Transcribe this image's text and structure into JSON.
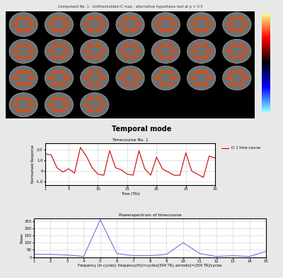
{
  "header": {
    "title": "Component No. 1 - Unthresholded IC map - alternative hypothesis test at p > 0.5",
    "section": "Temporal mode"
  },
  "chart_data": [
    {
      "type": "line",
      "title": "Timecourse No. 1",
      "x_label": "Time (TRs)",
      "y_label": "Normalised Response",
      "x": [
        1,
        2,
        3,
        4,
        5,
        6,
        7,
        8,
        9,
        10,
        11,
        12,
        13,
        14,
        15,
        16,
        17,
        18,
        19,
        20,
        21,
        22,
        23,
        24,
        25,
        26,
        27,
        28,
        29,
        30
      ],
      "series": [
        {
          "name": "IC 1 time course",
          "color": "#cc0000",
          "values": [
            1.6,
            1.5,
            0.3,
            -0.1,
            0.2,
            -0.2,
            2.2,
            1.4,
            0.3,
            -0.3,
            -0.4,
            1.9,
            0.3,
            0.1,
            -0.3,
            -0.4,
            1.9,
            0.2,
            -0.4,
            1.3,
            0.2,
            -0.1,
            -0.4,
            -0.4,
            1.7,
            0.0,
            -0.3,
            -0.6,
            1.4,
            1.2
          ]
        }
      ],
      "xlim": [
        1,
        30
      ],
      "xticks": [
        1,
        5,
        10,
        15,
        20,
        25,
        30
      ],
      "ylim": [
        -1.3,
        2.6
      ],
      "yticks": [
        {
          "value": -1.0,
          "label": "-1.0"
        },
        0,
        {
          "value": 1.0,
          "label": "1.0"
        },
        {
          "value": 2.0,
          "label": "2.0"
        }
      ],
      "grid": true,
      "legend": "right"
    },
    {
      "type": "line",
      "title": "Powerspectrum of timecourse",
      "x_label": "Frequency (in cycles); frequency(Hz)=cycles/(304 TR); period(s)=(304 TR)/cycles",
      "y_label": "Power",
      "x": [
        1,
        2,
        3,
        4,
        5,
        6,
        7,
        8,
        9,
        10,
        11,
        12,
        13,
        14,
        15
      ],
      "series": [
        {
          "name": "Power",
          "color": "#7070e0",
          "values": [
            20,
            20,
            15,
            5,
            260,
            25,
            10,
            10,
            20,
            100,
            25,
            5,
            10,
            5,
            40
          ]
        }
      ],
      "xlim": [
        1,
        15
      ],
      "xticks": [
        1,
        2,
        3,
        4,
        5,
        6,
        7,
        8,
        9,
        10,
        11,
        12,
        13,
        14,
        15
      ],
      "ylim": [
        0,
        270
      ],
      "yticks": [
        0,
        50,
        100,
        150,
        200,
        250
      ],
      "grid": true
    }
  ]
}
